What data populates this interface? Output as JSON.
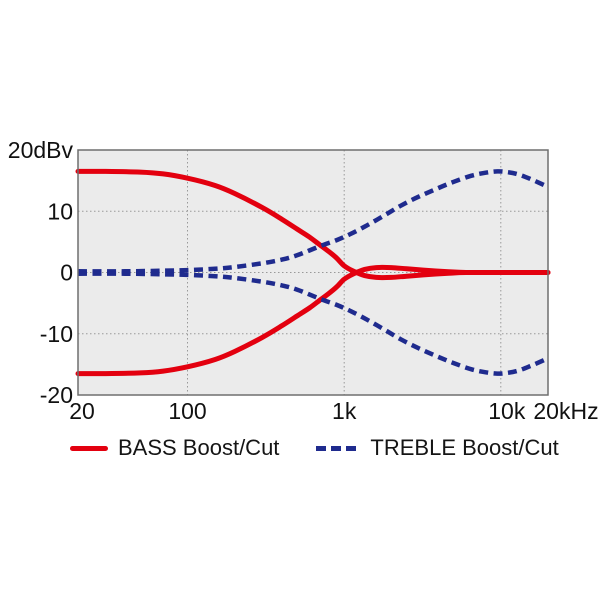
{
  "chart_data": {
    "type": "line",
    "title": "",
    "x_axis": {
      "scale": "log",
      "min": 20,
      "max": 20000,
      "unit": "Hz",
      "ticks": [
        {
          "value": 20,
          "label": "20"
        },
        {
          "value": 100,
          "label": "100"
        },
        {
          "value": 1000,
          "label": "1k"
        },
        {
          "value": 10000,
          "label": "10k"
        },
        {
          "value": 20000,
          "label": "20kHz"
        }
      ],
      "gridlines": [
        100,
        1000,
        10000
      ]
    },
    "y_axis": {
      "min": -20,
      "max": 20,
      "unit": "dBv",
      "ticks": [
        {
          "value": 20,
          "label": "20dBv"
        },
        {
          "value": 10,
          "label": "10"
        },
        {
          "value": 0,
          "label": "0"
        },
        {
          "value": -10,
          "label": "-10"
        },
        {
          "value": -20,
          "label": "-20"
        }
      ],
      "gridlines": [
        10,
        0,
        -10
      ]
    },
    "plot_background": "#ebebeb",
    "border_color": "#6e6e6e",
    "grid_color": "#999999",
    "legend_position": "bottom",
    "series": [
      {
        "name": "BASS Boost/Cut",
        "color": "#e3000f",
        "line_style": "solid",
        "curves": {
          "boost": [
            [
              20,
              16.5
            ],
            [
              30,
              16.5
            ],
            [
              50,
              16.4
            ],
            [
              70,
              16.1
            ],
            [
              100,
              15.4
            ],
            [
              150,
              14.2
            ],
            [
              200,
              12.9
            ],
            [
              300,
              10.6
            ],
            [
              400,
              8.7
            ],
            [
              500,
              7.1
            ],
            [
              600,
              5.8
            ],
            [
              700,
              4.5
            ],
            [
              800,
              3.4
            ],
            [
              900,
              2.3
            ],
            [
              1000,
              1.1
            ],
            [
              1150,
              0.2
            ],
            [
              1350,
              -0.5
            ],
            [
              1600,
              -0.8
            ],
            [
              2000,
              -0.8
            ],
            [
              2500,
              -0.6
            ],
            [
              3200,
              -0.4
            ],
            [
              4500,
              -0.15
            ],
            [
              6000,
              0
            ],
            [
              10000,
              0
            ],
            [
              20000,
              0
            ]
          ],
          "cut": [
            [
              20,
              -16.5
            ],
            [
              30,
              -16.5
            ],
            [
              50,
              -16.4
            ],
            [
              70,
              -16.1
            ],
            [
              100,
              -15.4
            ],
            [
              150,
              -14.2
            ],
            [
              200,
              -12.9
            ],
            [
              300,
              -10.6
            ],
            [
              400,
              -8.7
            ],
            [
              500,
              -7.1
            ],
            [
              600,
              -5.8
            ],
            [
              700,
              -4.5
            ],
            [
              800,
              -3.4
            ],
            [
              900,
              -2.3
            ],
            [
              1000,
              -1.1
            ],
            [
              1150,
              -0.2
            ],
            [
              1350,
              0.5
            ],
            [
              1600,
              0.8
            ],
            [
              2000,
              0.8
            ],
            [
              2500,
              0.6
            ],
            [
              3200,
              0.4
            ],
            [
              4500,
              0.15
            ],
            [
              6000,
              0
            ],
            [
              10000,
              0
            ],
            [
              20000,
              0
            ]
          ]
        }
      },
      {
        "name": "TREBLE Boost/Cut",
        "color": "#1f2b8e",
        "line_style": "dashed",
        "curves": {
          "boost": [
            [
              20,
              0.2
            ],
            [
              40,
              0.2
            ],
            [
              70,
              0.3
            ],
            [
              100,
              0.4
            ],
            [
              150,
              0.6
            ],
            [
              200,
              0.9
            ],
            [
              300,
              1.5
            ],
            [
              400,
              2.1
            ],
            [
              500,
              2.8
            ],
            [
              700,
              4.3
            ],
            [
              900,
              5.3
            ],
            [
              1100,
              6.3
            ],
            [
              1400,
              7.7
            ],
            [
              1800,
              9.3
            ],
            [
              2300,
              10.9
            ],
            [
              3000,
              12.4
            ],
            [
              4000,
              13.8
            ],
            [
              5000,
              14.8
            ],
            [
              6500,
              15.8
            ],
            [
              8000,
              16.3
            ],
            [
              9500,
              16.5
            ],
            [
              11000,
              16.4
            ],
            [
              13000,
              16
            ],
            [
              16000,
              15.1
            ],
            [
              20000,
              14
            ]
          ],
          "cut": [
            [
              20,
              -0.2
            ],
            [
              40,
              -0.2
            ],
            [
              70,
              -0.3
            ],
            [
              100,
              -0.4
            ],
            [
              150,
              -0.6
            ],
            [
              200,
              -0.9
            ],
            [
              300,
              -1.5
            ],
            [
              400,
              -2.1
            ],
            [
              500,
              -2.8
            ],
            [
              700,
              -4.3
            ],
            [
              900,
              -5.3
            ],
            [
              1100,
              -6.3
            ],
            [
              1400,
              -7.7
            ],
            [
              1800,
              -9.3
            ],
            [
              2300,
              -10.9
            ],
            [
              3000,
              -12.4
            ],
            [
              4000,
              -13.8
            ],
            [
              5000,
              -14.8
            ],
            [
              6500,
              -15.8
            ],
            [
              8000,
              -16.3
            ],
            [
              9500,
              -16.5
            ],
            [
              11000,
              -16.4
            ],
            [
              13000,
              -16
            ],
            [
              16000,
              -15.1
            ],
            [
              20000,
              -14
            ]
          ]
        }
      }
    ]
  },
  "legend": {
    "items": [
      {
        "label": "BASS Boost/Cut"
      },
      {
        "label": "TREBLE Boost/Cut"
      }
    ]
  }
}
